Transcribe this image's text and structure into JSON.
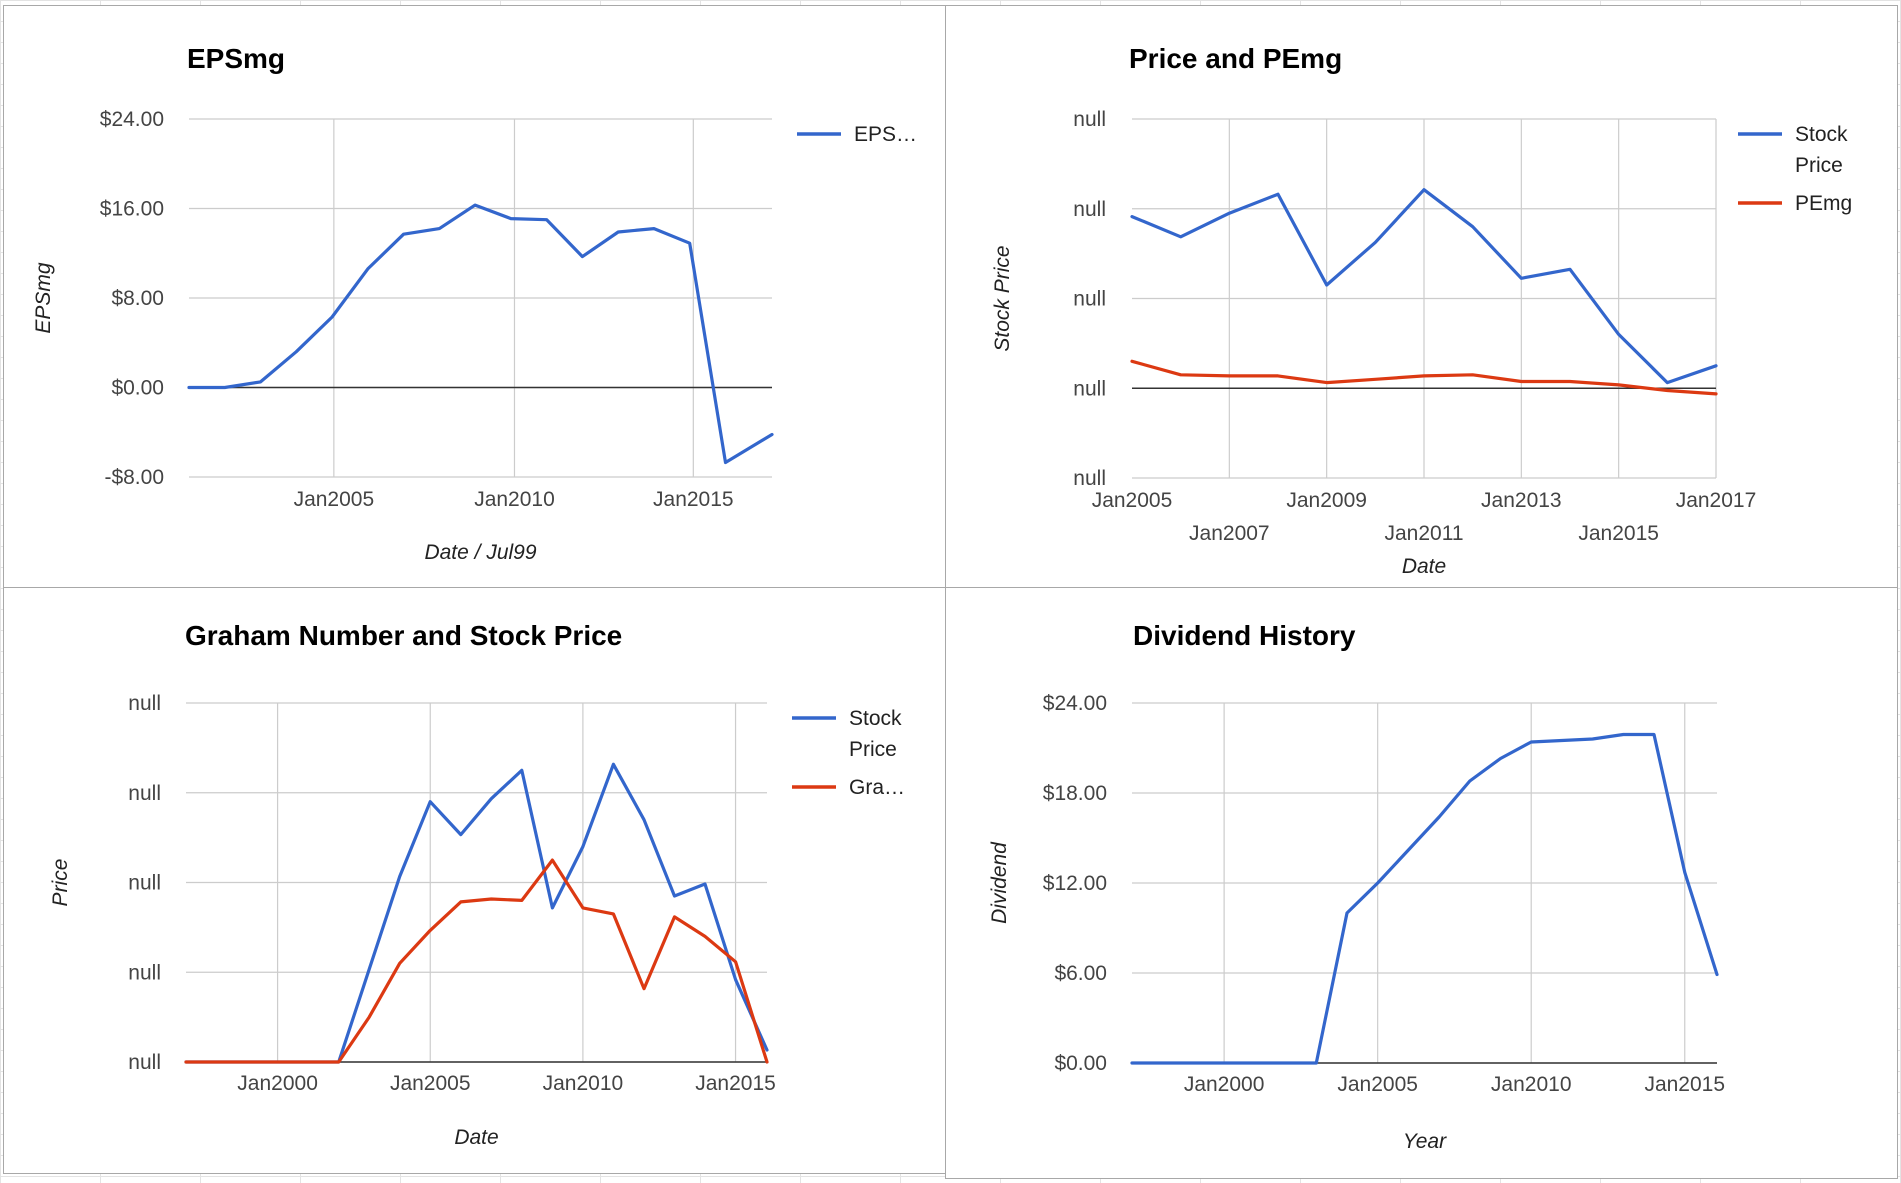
{
  "colors": {
    "blue": "#3366cc",
    "red": "#dc3912"
  },
  "chart_data": [
    {
      "type": "line",
      "title": "EPSmg",
      "xlabel": "Date / Jul99",
      "ylabel": "EPSmg",
      "xlim": [
        2000,
        2016.3
      ],
      "ylim": [
        -8,
        24
      ],
      "y_ticks": [
        {
          "v": 24,
          "label": "$24.00"
        },
        {
          "v": 16,
          "label": "$16.00"
        },
        {
          "v": 8,
          "label": "$8.00"
        },
        {
          "v": 0,
          "label": "$0.00"
        },
        {
          "v": -8,
          "label": "-$8.00"
        }
      ],
      "x_ticks": [
        {
          "v": 2004.05,
          "label": "Jan2005",
          "row": 0
        },
        {
          "v": 2009.1,
          "label": "Jan2010",
          "row": 0
        },
        {
          "v": 2014.1,
          "label": "Jan2015",
          "row": 0
        }
      ],
      "vgrid": [
        2004.05,
        2009.1,
        2014.1
      ],
      "legend": {
        "position": "right",
        "entries": [
          {
            "label": "EPS…",
            "color": "#3366cc"
          }
        ]
      },
      "series": [
        {
          "name": "EPSmg",
          "color": "#3366cc",
          "x": [
            2000,
            2001,
            2002,
            2003,
            2004,
            2005,
            2006,
            2007,
            2008,
            2009,
            2010,
            2011,
            2012,
            2013,
            2014,
            2015,
            2016.3
          ],
          "y": [
            0,
            0,
            0.5,
            3.2,
            6.3,
            10.6,
            13.7,
            14.2,
            16.3,
            15.1,
            15.0,
            11.7,
            13.9,
            14.2,
            12.9,
            -6.7,
            -4.2
          ]
        }
      ]
    },
    {
      "type": "line",
      "title": "Price and PEmg",
      "xlabel": "Date",
      "ylabel": "Stock Price",
      "xlim": [
        2005,
        2017
      ],
      "ylim": [
        -8,
        24
      ],
      "y_ticks": [
        {
          "v": 24,
          "label": "null"
        },
        {
          "v": 16,
          "label": "null"
        },
        {
          "v": 8,
          "label": "null"
        },
        {
          "v": 0,
          "label": "null"
        },
        {
          "v": -8,
          "label": "null"
        }
      ],
      "x_ticks": [
        {
          "v": 2005,
          "label": "Jan2005",
          "row": 0
        },
        {
          "v": 2007,
          "label": "Jan2007",
          "row": 1
        },
        {
          "v": 2009,
          "label": "Jan2009",
          "row": 0
        },
        {
          "v": 2011,
          "label": "Jan2011",
          "row": 1
        },
        {
          "v": 2013,
          "label": "Jan2013",
          "row": 0
        },
        {
          "v": 2015,
          "label": "Jan2015",
          "row": 1
        },
        {
          "v": 2017,
          "label": "Jan2017",
          "row": 0
        }
      ],
      "vgrid": [
        2007,
        2009,
        2011,
        2013,
        2015,
        2017
      ],
      "legend": {
        "position": "right",
        "entries": [
          {
            "label": [
              "Stock",
              "Price"
            ],
            "color": "#3366cc"
          },
          {
            "label": "PEmg",
            "color": "#dc3912"
          }
        ]
      },
      "series": [
        {
          "name": "Stock Price",
          "color": "#3366cc",
          "x": [
            2005,
            2006,
            2007,
            2008,
            2009,
            2010,
            2011,
            2012,
            2013,
            2014,
            2015,
            2016,
            2017
          ],
          "y": [
            15.3,
            13.5,
            15.6,
            17.3,
            9.2,
            13.0,
            17.7,
            14.4,
            9.8,
            10.6,
            4.8,
            0.5,
            2.0
          ]
        },
        {
          "name": "PEmg",
          "color": "#dc3912",
          "x": [
            2005,
            2006,
            2007,
            2008,
            2009,
            2010,
            2011,
            2012,
            2013,
            2014,
            2015,
            2016,
            2017
          ],
          "y": [
            2.4,
            1.2,
            1.1,
            1.1,
            0.5,
            0.8,
            1.1,
            1.2,
            0.6,
            0.6,
            0.3,
            -0.2,
            -0.5
          ]
        }
      ]
    },
    {
      "type": "line",
      "title": "Graham Number and Stock Price",
      "xlabel": "Date",
      "ylabel": "Price",
      "xlim": [
        1997,
        2016.03
      ],
      "ylim": [
        0,
        24
      ],
      "y_ticks": [
        {
          "v": 24,
          "label": "null"
        },
        {
          "v": 18,
          "label": "null"
        },
        {
          "v": 12,
          "label": "null"
        },
        {
          "v": 6,
          "label": "null"
        },
        {
          "v": 0,
          "label": "null"
        }
      ],
      "x_ticks": [
        {
          "v": 2000,
          "label": "Jan2000",
          "row": 0
        },
        {
          "v": 2005,
          "label": "Jan2005",
          "row": 0
        },
        {
          "v": 2010,
          "label": "Jan2010",
          "row": 0
        },
        {
          "v": 2015,
          "label": "Jan2015",
          "row": 0
        }
      ],
      "vgrid": [
        2000,
        2005,
        2010,
        2015
      ],
      "legend": {
        "position": "right",
        "entries": [
          {
            "label": [
              "Stock",
              "Price"
            ],
            "color": "#3366cc"
          },
          {
            "label": "Gra…",
            "color": "#dc3912"
          }
        ]
      },
      "series": [
        {
          "name": "Stock Price",
          "color": "#3366cc",
          "x": [
            1997,
            1998,
            1999,
            2000,
            2001,
            2002,
            2003,
            2004,
            2005,
            2006,
            2007,
            2008,
            2009,
            2010,
            2011,
            2012,
            2013,
            2014,
            2015,
            2016.03
          ],
          "y": [
            0,
            0,
            0,
            0,
            0,
            0,
            6.2,
            12.4,
            17.4,
            15.2,
            17.6,
            19.5,
            10.3,
            14.4,
            19.9,
            16.2,
            11.1,
            11.9,
            5.5,
            0.8
          ]
        },
        {
          "name": "Graham Number",
          "color": "#dc3912",
          "x": [
            1997,
            1998,
            1999,
            2000,
            2001,
            2002,
            2003,
            2004,
            2005,
            2006,
            2007,
            2008,
            2009,
            2010,
            2011,
            2012,
            2013,
            2014,
            2015,
            2016.03
          ],
          "y": [
            0,
            0,
            0,
            0,
            0,
            0,
            3.0,
            6.6,
            8.8,
            10.7,
            10.9,
            10.8,
            13.5,
            10.3,
            9.9,
            4.9,
            9.7,
            8.4,
            6.7,
            0.0
          ]
        }
      ]
    },
    {
      "type": "line",
      "title": "Dividend History",
      "xlabel": "Year",
      "ylabel": "Dividend",
      "xlim": [
        1997,
        2016.05
      ],
      "ylim": [
        0,
        24
      ],
      "y_ticks": [
        {
          "v": 24,
          "label": "$24.00"
        },
        {
          "v": 18,
          "label": "$18.00"
        },
        {
          "v": 12,
          "label": "$12.00"
        },
        {
          "v": 6,
          "label": "$6.00"
        },
        {
          "v": 0,
          "label": "$0.00"
        }
      ],
      "x_ticks": [
        {
          "v": 2000,
          "label": "Jan2000",
          "row": 0
        },
        {
          "v": 2005,
          "label": "Jan2005",
          "row": 0
        },
        {
          "v": 2010,
          "label": "Jan2010",
          "row": 0
        },
        {
          "v": 2015,
          "label": "Jan2015",
          "row": 0
        }
      ],
      "vgrid": [
        2000,
        2005,
        2010,
        2015
      ],
      "legend": null,
      "series": [
        {
          "name": "Dividend",
          "color": "#3366cc",
          "x": [
            1997,
            1998,
            1999,
            2000,
            2001,
            2002,
            2003,
            2004,
            2005,
            2006,
            2007,
            2008,
            2009,
            2010,
            2011,
            2012,
            2013,
            2014,
            2015,
            2016.05
          ],
          "y": [
            0,
            0,
            0,
            0,
            0,
            0,
            0,
            10.0,
            12.0,
            14.2,
            16.4,
            18.8,
            20.3,
            21.4,
            21.5,
            21.6,
            21.9,
            21.9,
            12.7,
            5.9
          ]
        }
      ]
    }
  ]
}
